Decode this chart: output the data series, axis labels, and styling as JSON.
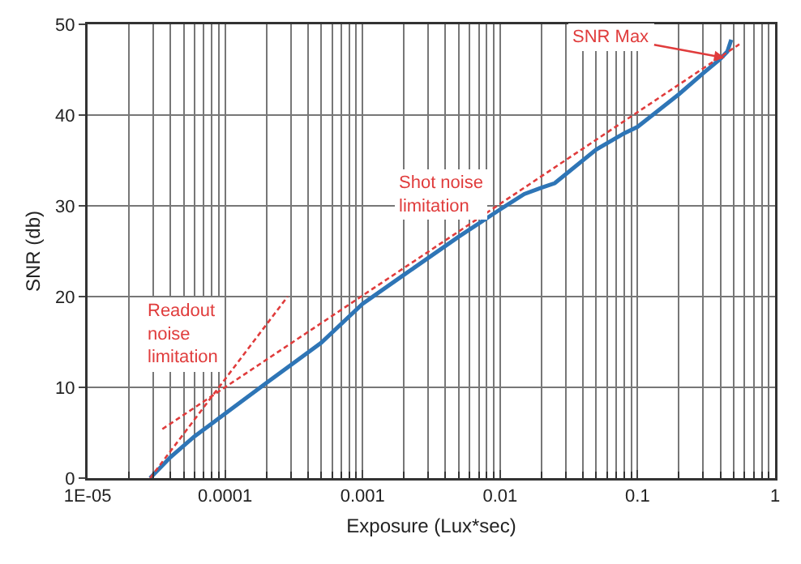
{
  "chart_data": {
    "type": "line",
    "xlabel": "Exposure (Lux*sec)",
    "ylabel": "SNR (db)",
    "log": "x",
    "grid": true,
    "marker": "none",
    "xlim": [
      1e-05,
      1
    ],
    "xticks": [
      {
        "value": 1e-05,
        "label": "1E-05"
      },
      0.0001,
      0.001,
      0.01,
      0.1,
      1
    ],
    "ylim": [
      0,
      50
    ],
    "yticks": [
      0,
      10,
      20,
      30,
      40,
      50
    ],
    "series": [
      {
        "color": "#2e75b6",
        "line_style": "solid",
        "x": [
          2.85e-05,
          4e-05,
          6e-05,
          0.0001,
          0.0002,
          0.0005,
          0.001,
          0.002,
          0.005,
          0.01,
          0.015,
          0.02,
          0.025,
          0.05,
          0.08,
          0.1,
          0.15,
          0.2,
          0.3,
          0.4,
          0.45,
          0.48
        ],
        "values": [
          0,
          2.3,
          4.6,
          7.1,
          10.5,
          14.9,
          19.2,
          22.4,
          26.6,
          29.6,
          31.3,
          32.0,
          32.5,
          36.2,
          38,
          38.7,
          40.8,
          42.3,
          44.6,
          46.2,
          47,
          48.3
        ]
      },
      {
        "color": "#e03c3c",
        "line_style": "dashed",
        "x": [
          3.5e-05,
          0.55
        ],
        "values": [
          5.4,
          47.8
        ]
      },
      {
        "color": "#e03c3c",
        "line_style": "dashed",
        "x": [
          2.85e-05,
          0.000285
        ],
        "values": [
          0,
          20
        ]
      }
    ],
    "annotations": [
      {
        "text": "SNR Max",
        "x": 0.43,
        "y": 46.3
      },
      "Shot noise\nlimitation",
      "Readout\nnoise\nlimitation"
    ]
  }
}
